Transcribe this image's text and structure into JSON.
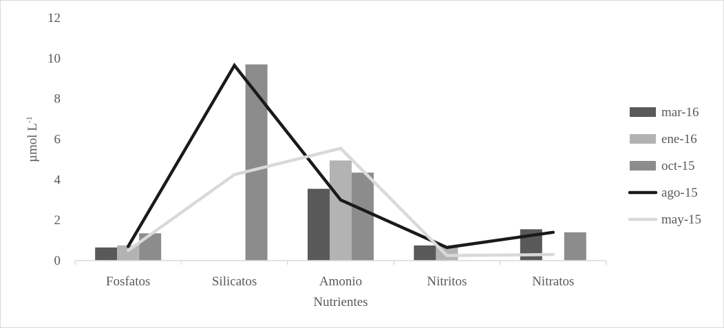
{
  "chart_data": {
    "type": "bar",
    "categories": [
      "Fosfatos",
      "Silicatos",
      "Amonio",
      "Nitritos",
      "Nitratos"
    ],
    "xlabel": "Nutrientes",
    "ylabel": "µmol L",
    "ylabel_superscript": "-1",
    "ylim": [
      0,
      12
    ],
    "yticks": [
      0,
      2,
      4,
      6,
      8,
      10,
      12
    ],
    "grid": false,
    "legend_position": "right",
    "series": [
      {
        "name": "mar-16",
        "kind": "bar",
        "color": "#595959",
        "values": [
          0.65,
          null,
          3.55,
          0.75,
          1.55
        ]
      },
      {
        "name": "ene-16",
        "kind": "bar",
        "color": "#b3b3b3",
        "values": [
          0.75,
          null,
          4.95,
          0.7,
          null
        ]
      },
      {
        "name": "oct-15",
        "kind": "bar",
        "color": "#8c8c8c",
        "values": [
          1.35,
          9.7,
          4.35,
          null,
          1.4
        ]
      },
      {
        "name": "ago-15",
        "kind": "line",
        "color": "#1a1a1a",
        "values": [
          0.7,
          9.65,
          3.0,
          0.65,
          1.4
        ]
      },
      {
        "name": "may-15",
        "kind": "line",
        "color": "#d9d9d9",
        "values": [
          0.5,
          4.25,
          5.55,
          0.25,
          0.3
        ]
      }
    ]
  }
}
